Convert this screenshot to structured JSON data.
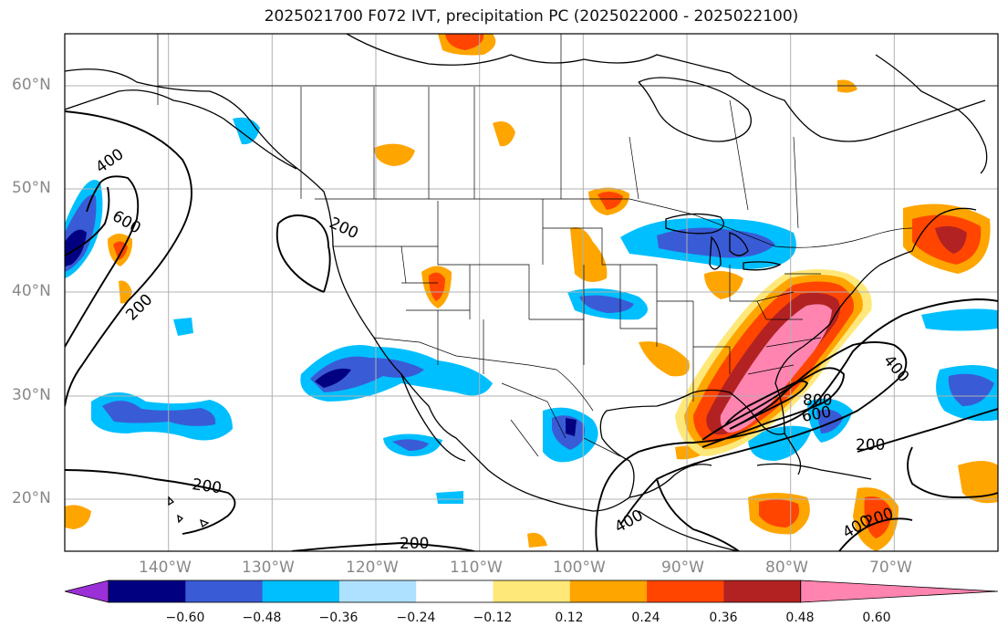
{
  "title": "2025021700 F072 IVT, precipitation PC (2025022000 - 2025022100)",
  "map": {
    "lon_range": [
      -149,
      -59
    ],
    "lat_range": [
      15,
      65
    ],
    "lat_labels": [
      "60°N",
      "50°N",
      "40°N",
      "30°N",
      "20°N"
    ],
    "lon_labels": [
      "140°W",
      "130°W",
      "120°W",
      "110°W",
      "100°W",
      "90°W",
      "80°W",
      "70°W"
    ],
    "contour_labels": [
      "400",
      "600",
      "200",
      "200",
      "200",
      "200",
      "800",
      "600",
      "400",
      "200",
      "400",
      "400",
      "200"
    ]
  },
  "colorbar": {
    "tick_labels": [
      "−0.60",
      "−0.48",
      "−0.36",
      "−0.24",
      "−0.12",
      "0.12",
      "0.24",
      "0.36",
      "0.48",
      "0.60"
    ],
    "colors": [
      "#9b30d9",
      "#000080",
      "#3a5bd6",
      "#00bfff",
      "#aee0ff",
      "#ffffff",
      "#ffe87a",
      "#ffa500",
      "#ff4500",
      "#b22222",
      "#ff85b0"
    ]
  }
}
